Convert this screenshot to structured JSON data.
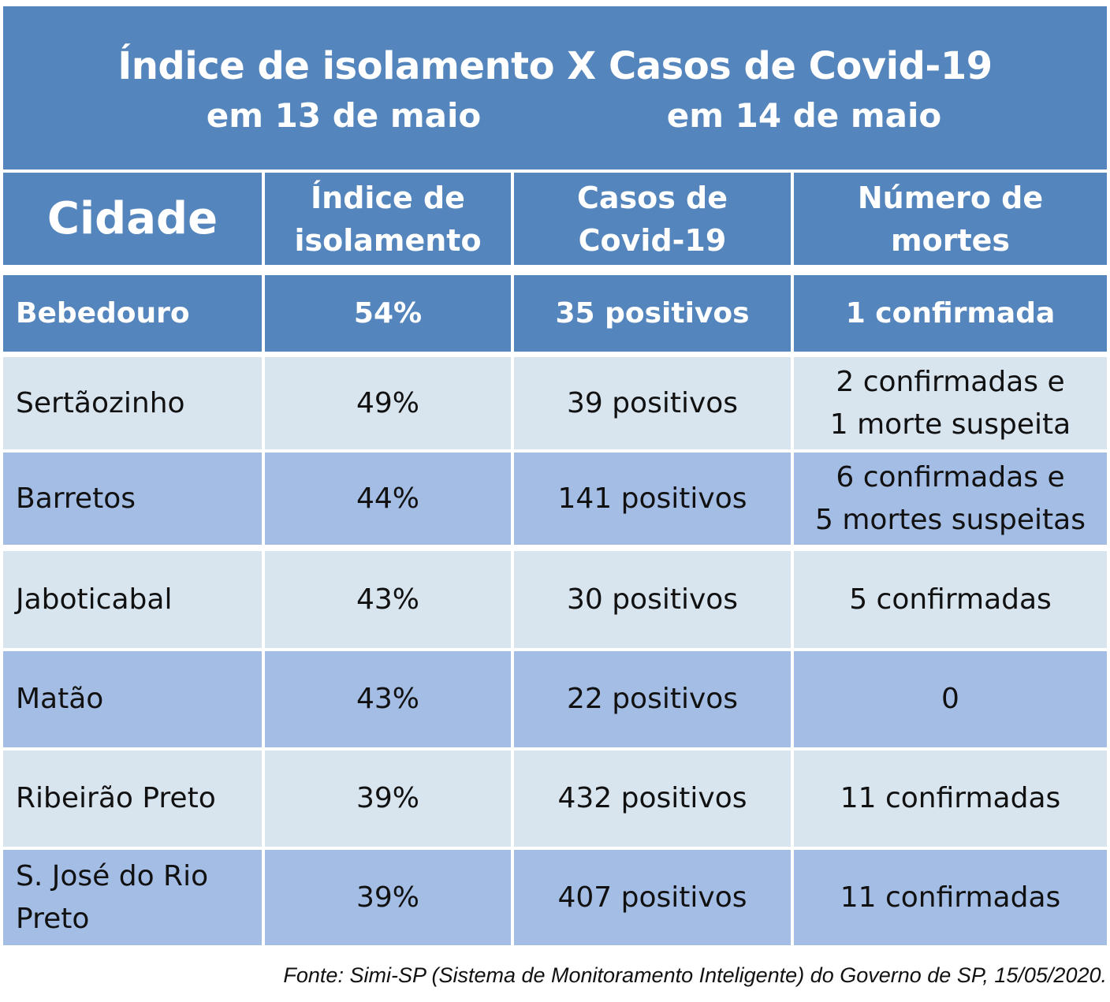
{
  "title": {
    "main": "Índice de isolamento X Casos de Covid-19",
    "sub_left": "em 13 de maio",
    "sub_right": "em 14 de maio"
  },
  "headers": {
    "city": "Cidade",
    "isolation": [
      "Índice de",
      "isolamento"
    ],
    "cases": [
      "Casos de",
      "Covid-19"
    ],
    "deaths": [
      "Número de",
      "mortes"
    ]
  },
  "rows": [
    {
      "city": [
        "Bebedouro"
      ],
      "isolation": "54%",
      "cases": "35 positivos",
      "deaths": [
        "1 confirmada"
      ]
    },
    {
      "city": [
        "Sertãozinho"
      ],
      "isolation": "49%",
      "cases": "39 positivos",
      "deaths": [
        "2 confirmadas e",
        "1 morte suspeita"
      ]
    },
    {
      "city": [
        "Barretos"
      ],
      "isolation": "44%",
      "cases": "141 positivos",
      "deaths": [
        "6 confirmadas e",
        "5 mortes suspeitas"
      ]
    },
    {
      "city": [
        "Jaboticabal"
      ],
      "isolation": "43%",
      "cases": "30 positivos",
      "deaths": [
        "5 confirmadas"
      ]
    },
    {
      "city": [
        "Matão"
      ],
      "isolation": "43%",
      "cases": "22 positivos",
      "deaths": [
        "0"
      ]
    },
    {
      "city": [
        "Ribeirão Preto"
      ],
      "isolation": "39%",
      "cases": "432 positivos",
      "deaths": [
        "11 confirmadas"
      ]
    },
    {
      "city": [
        "S. José do Rio",
        "Preto"
      ],
      "isolation": "39%",
      "cases": "407 positivos",
      "deaths": [
        "11 confirmadas"
      ]
    }
  ],
  "source": "Fonte: Simi-SP (Sistema de Monitoramento Inteligente) do Governo de SP, 15/05/2020.",
  "colors": {
    "header_blue": "#5485bc",
    "row_light": "#d8e4ee",
    "row_mid": "#a4bde5"
  },
  "chart_data": {
    "type": "table",
    "title": "Índice de isolamento X Casos de Covid-19",
    "columns": [
      "Cidade",
      "Índice de isolamento",
      "Casos de Covid-19",
      "Número de mortes"
    ],
    "rows": [
      [
        "Bebedouro",
        "54%",
        "35 positivos",
        "1 confirmada"
      ],
      [
        "Sertãozinho",
        "49%",
        "39 positivos",
        "2 confirmadas e 1 morte suspeita"
      ],
      [
        "Barretos",
        "44%",
        "141 positivos",
        "6 confirmadas e 5 mortes suspeitas"
      ],
      [
        "Jaboticabal",
        "43%",
        "30 positivos",
        "5 confirmadas"
      ],
      [
        "Matão",
        "43%",
        "22 positivos",
        "0"
      ],
      [
        "Ribeirão Preto",
        "39%",
        "432 positivos",
        "11 confirmadas"
      ],
      [
        "S. José do Rio Preto",
        "39%",
        "407 positivos",
        "11 confirmadas"
      ]
    ]
  }
}
